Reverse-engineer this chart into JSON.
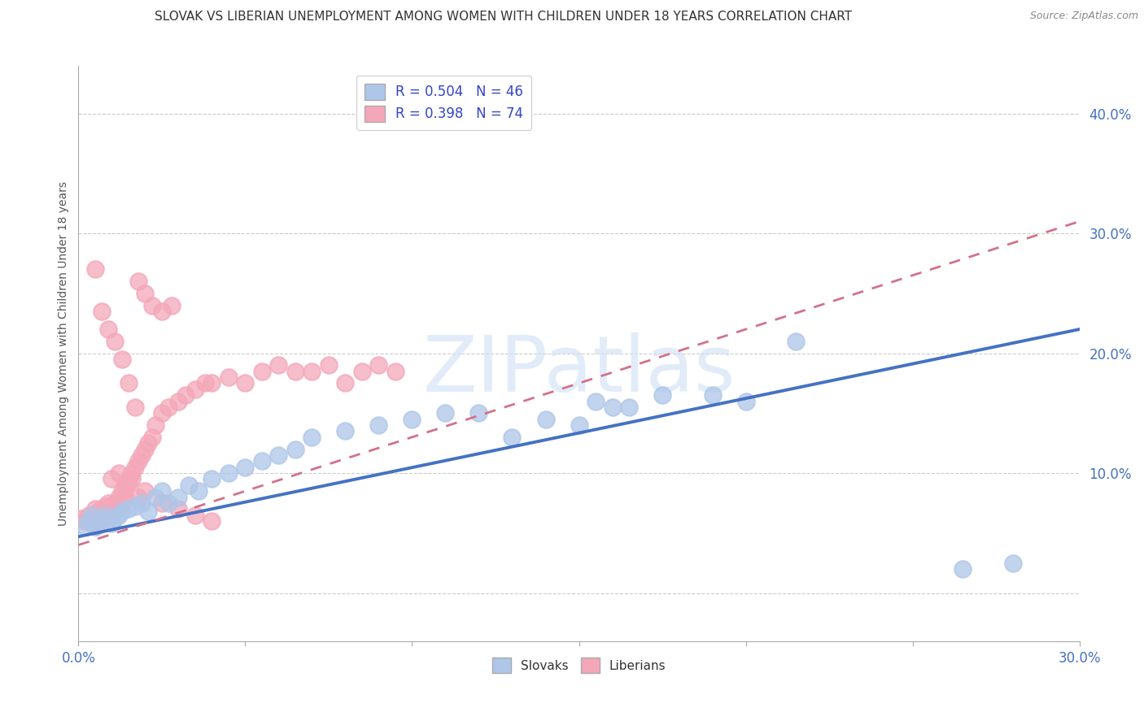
{
  "title": "SLOVAK VS LIBERIAN UNEMPLOYMENT AMONG WOMEN WITH CHILDREN UNDER 18 YEARS CORRELATION CHART",
  "source": "Source: ZipAtlas.com",
  "ylabel": "Unemployment Among Women with Children Under 18 years",
  "xlim": [
    0.0,
    0.3
  ],
  "ylim": [
    -0.04,
    0.44
  ],
  "yticks": [
    0.0,
    0.1,
    0.2,
    0.3,
    0.4
  ],
  "ytick_labels": [
    "",
    "10.0%",
    "20.0%",
    "30.0%",
    "40.0%"
  ],
  "xticks": [
    0.0,
    0.05,
    0.1,
    0.15,
    0.2,
    0.25,
    0.3
  ],
  "slovak_R": 0.504,
  "slovak_N": 46,
  "liberian_R": 0.398,
  "liberian_N": 74,
  "slovak_color": "#aec6e8",
  "liberian_color": "#f4a7b9",
  "slovak_line_color": "#4472c4",
  "liberian_line_color": "#d4718a",
  "watermark": "ZIPatlas",
  "watermark_color": "#c8d8f0",
  "background_color": "#ffffff",
  "title_fontsize": 11,
  "legend_fontsize": 11,
  "slovak_scatter_x": [
    0.002,
    0.003,
    0.004,
    0.005,
    0.006,
    0.007,
    0.008,
    0.009,
    0.01,
    0.011,
    0.012,
    0.013,
    0.015,
    0.017,
    0.019,
    0.021,
    0.023,
    0.025,
    0.027,
    0.03,
    0.033,
    0.036,
    0.04,
    0.045,
    0.05,
    0.055,
    0.06,
    0.065,
    0.07,
    0.08,
    0.09,
    0.1,
    0.11,
    0.12,
    0.13,
    0.14,
    0.155,
    0.165,
    0.175,
    0.19,
    0.2,
    0.215,
    0.15,
    0.16,
    0.265,
    0.28
  ],
  "slovak_scatter_y": [
    0.055,
    0.06,
    0.065,
    0.055,
    0.058,
    0.06,
    0.065,
    0.06,
    0.058,
    0.062,
    0.065,
    0.068,
    0.07,
    0.072,
    0.075,
    0.068,
    0.08,
    0.085,
    0.075,
    0.08,
    0.09,
    0.085,
    0.095,
    0.1,
    0.105,
    0.11,
    0.115,
    0.12,
    0.13,
    0.135,
    0.14,
    0.145,
    0.15,
    0.15,
    0.13,
    0.145,
    0.16,
    0.155,
    0.165,
    0.165,
    0.16,
    0.21,
    0.14,
    0.155,
    0.02,
    0.025
  ],
  "liberian_scatter_x": [
    0.001,
    0.002,
    0.003,
    0.004,
    0.005,
    0.005,
    0.006,
    0.006,
    0.007,
    0.007,
    0.008,
    0.008,
    0.009,
    0.009,
    0.01,
    0.01,
    0.011,
    0.011,
    0.012,
    0.012,
    0.013,
    0.013,
    0.014,
    0.014,
    0.015,
    0.015,
    0.016,
    0.017,
    0.018,
    0.019,
    0.02,
    0.021,
    0.022,
    0.023,
    0.025,
    0.027,
    0.03,
    0.032,
    0.035,
    0.038,
    0.04,
    0.045,
    0.05,
    0.055,
    0.06,
    0.065,
    0.07,
    0.075,
    0.08,
    0.085,
    0.09,
    0.095,
    0.01,
    0.012,
    0.014,
    0.016,
    0.018,
    0.02,
    0.025,
    0.03,
    0.035,
    0.04,
    0.018,
    0.02,
    0.022,
    0.025,
    0.028,
    0.005,
    0.007,
    0.009,
    0.011,
    0.013,
    0.015,
    0.017
  ],
  "liberian_scatter_y": [
    0.062,
    0.06,
    0.065,
    0.058,
    0.07,
    0.055,
    0.06,
    0.068,
    0.062,
    0.07,
    0.065,
    0.072,
    0.068,
    0.075,
    0.07,
    0.065,
    0.068,
    0.075,
    0.072,
    0.08,
    0.078,
    0.085,
    0.08,
    0.09,
    0.092,
    0.095,
    0.1,
    0.105,
    0.11,
    0.115,
    0.12,
    0.125,
    0.13,
    0.14,
    0.15,
    0.155,
    0.16,
    0.165,
    0.17,
    0.175,
    0.175,
    0.18,
    0.175,
    0.185,
    0.19,
    0.185,
    0.185,
    0.19,
    0.175,
    0.185,
    0.19,
    0.185,
    0.095,
    0.1,
    0.09,
    0.095,
    0.08,
    0.085,
    0.075,
    0.07,
    0.065,
    0.06,
    0.26,
    0.25,
    0.24,
    0.235,
    0.24,
    0.27,
    0.235,
    0.22,
    0.21,
    0.195,
    0.175,
    0.155
  ],
  "slovak_trend": [
    0.047,
    0.22
  ],
  "liberian_trend": [
    0.04,
    0.31
  ]
}
